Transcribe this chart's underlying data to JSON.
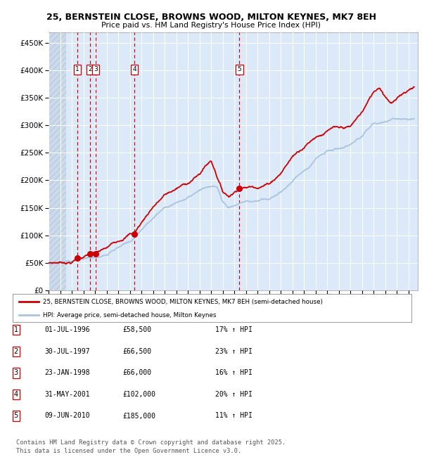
{
  "title_line1": "25, BERNSTEIN CLOSE, BROWNS WOOD, MILTON KEYNES, MK7 8EH",
  "title_line2": "Price paid vs. HM Land Registry's House Price Index (HPI)",
  "ylim": [
    0,
    470000
  ],
  "yticks": [
    0,
    50000,
    100000,
    150000,
    200000,
    250000,
    300000,
    350000,
    400000,
    450000
  ],
  "ytick_labels": [
    "£0",
    "£50K",
    "£100K",
    "£150K",
    "£200K",
    "£250K",
    "£300K",
    "£350K",
    "£400K",
    "£450K"
  ],
  "xlim_start": 1994.0,
  "xlim_end": 2025.8,
  "bg_color": "#dce9f8",
  "grid_color": "#ffffff",
  "line_color_property": "#cc0000",
  "line_color_hpi": "#aac4e0",
  "transactions": [
    {
      "num": 1,
      "date": "01-JUL-1996",
      "year": 1996.5,
      "price": 58500,
      "pct": "17%",
      "label": "1"
    },
    {
      "num": 2,
      "date": "30-JUL-1997",
      "year": 1997.58,
      "price": 66500,
      "pct": "23%",
      "label": "2"
    },
    {
      "num": 3,
      "date": "23-JAN-1998",
      "year": 1998.06,
      "price": 66000,
      "pct": "16%",
      "label": "3"
    },
    {
      "num": 4,
      "date": "31-MAY-2001",
      "year": 2001.41,
      "price": 102000,
      "pct": "20%",
      "label": "4"
    },
    {
      "num": 5,
      "date": "09-JUN-2010",
      "year": 2010.44,
      "price": 185000,
      "pct": "11%",
      "label": "5"
    }
  ],
  "legend_property": "25, BERNSTEIN CLOSE, BROWNS WOOD, MILTON KEYNES, MK7 8EH (semi-detached house)",
  "legend_hpi": "HPI: Average price, semi-detached house, Milton Keynes",
  "footer": "Contains HM Land Registry data © Crown copyright and database right 2025.\nThis data is licensed under the Open Government Licence v3.0.",
  "table_rows": [
    [
      "1",
      "01-JUL-1996",
      "£58,500",
      "17% ↑ HPI"
    ],
    [
      "2",
      "30-JUL-1997",
      "£66,500",
      "23% ↑ HPI"
    ],
    [
      "3",
      "23-JAN-1998",
      "£66,000",
      "16% ↑ HPI"
    ],
    [
      "4",
      "31-MAY-2001",
      "£102,000",
      "20% ↑ HPI"
    ],
    [
      "5",
      "09-JUN-2010",
      "£185,000",
      "11% ↑ HPI"
    ]
  ]
}
